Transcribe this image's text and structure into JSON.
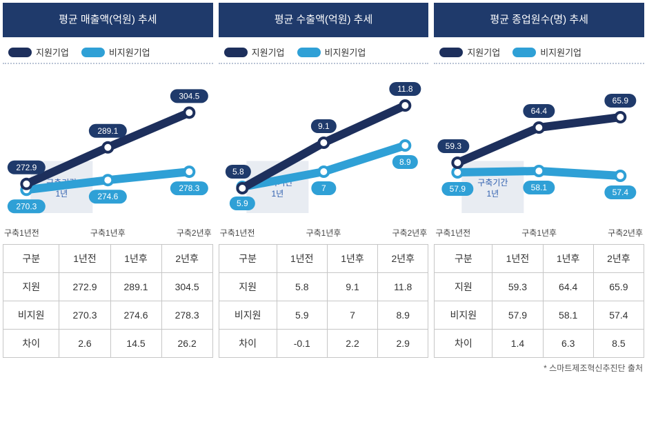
{
  "colors": {
    "title_bg": "#1f3a6b",
    "dark_line": "#1d2f5c",
    "light_line": "#2fa0d6",
    "bubble_dark_fill": "#1f3a6b",
    "bubble_light_fill": "#2fa0d6",
    "bubble_text": "#ffffff",
    "grid_dots": "#b8c2d4",
    "build_band": "#e8ecf2",
    "build_text": "#2f5faf",
    "table_border": "#c6c6c6"
  },
  "legend": {
    "dark": "지원기업",
    "light": "비지원기업"
  },
  "x_axis": [
    "구축1년전",
    "구축1년후",
    "구축2년후"
  ],
  "build_label_line1": "구축기간",
  "build_label_line2": "1년",
  "table_header": [
    "구분",
    "1년전",
    "1년후",
    "2년후"
  ],
  "row_labels": {
    "support": "지원",
    "non_support": "비지원",
    "diff": "차이"
  },
  "source_note": "* 스마트제조혁신추진단 출처",
  "panels": [
    {
      "title": "평균 매출액(억원) 추세",
      "dark_values": [
        272.9,
        289.1,
        304.5
      ],
      "light_values": [
        270.3,
        274.6,
        278.3
      ],
      "diff": [
        2.6,
        14.5,
        26.2
      ],
      "y_min": 260,
      "y_max": 315,
      "dark_label_pos": [
        "above",
        "above",
        "above"
      ],
      "light_label_pos": [
        "below",
        "below",
        "below"
      ]
    },
    {
      "title": "평균 수출액(억원) 추세",
      "dark_values": [
        5.8,
        9.1,
        11.8
      ],
      "light_values": [
        5.9,
        7.0,
        8.9
      ],
      "diff": [
        -0.1,
        2.2,
        2.9
      ],
      "y_min": 4,
      "y_max": 13,
      "dark_label_pos": [
        "above-left",
        "above",
        "above"
      ],
      "light_label_pos": [
        "below",
        "below",
        "below"
      ]
    },
    {
      "title": "평균 종업원수(명) 추세",
      "dark_values": [
        59.3,
        64.4,
        65.9
      ],
      "light_values": [
        57.9,
        58.1,
        57.4
      ],
      "diff": [
        1.4,
        6.3,
        8.5
      ],
      "y_min": 52,
      "y_max": 70,
      "dark_label_pos": [
        "above-left",
        "above",
        "above"
      ],
      "light_label_pos": [
        "below",
        "below",
        "below"
      ]
    }
  ]
}
